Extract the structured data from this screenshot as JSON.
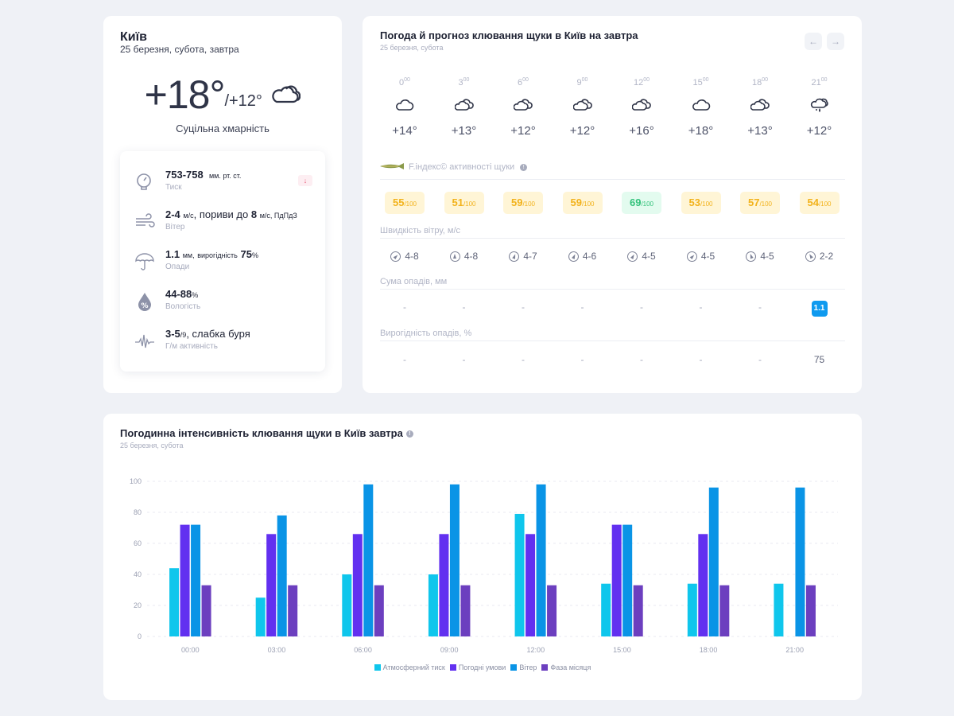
{
  "summary": {
    "city": "Київ",
    "date": "25 березня, субота, завтра",
    "temp_max": "+18°",
    "temp_min": "/+12°",
    "weather_icon": "cloudy-icon",
    "condition": "Суцільна хмарність",
    "details": [
      {
        "icon": "pressure-gauge-icon",
        "value": "753-758",
        "unit": "мм. рт. ст.",
        "label": "Тиск",
        "trend": "down"
      },
      {
        "icon": "wind-icon",
        "value": "2-4",
        "unit": "м/с",
        "extra": ", пориви до",
        "gust": "8",
        "gust_unit": "м/с, ПдПдЗ",
        "label": "Вітер"
      },
      {
        "icon": "umbrella-icon",
        "value": "1.1",
        "unit": "мм,",
        "extra": "вирогідність",
        "prob": "75",
        "prob_unit": "%",
        "label": "Опади"
      },
      {
        "icon": "humidity-drop-icon",
        "value": "44-88",
        "unit": "%",
        "label": "Вологість"
      },
      {
        "icon": "geomagnetic-pulse-icon",
        "value": "3-5",
        "unit": "/9",
        "extra": ", слабка буря",
        "label": "Г/м активність"
      }
    ]
  },
  "forecast": {
    "title": "Погода й прогноз клювання щуки в Київ на завтра",
    "subtitle": "25 березня, субота",
    "prev_label": "←",
    "next_label": "→",
    "hours": [
      {
        "h": "0",
        "m": "00",
        "icon": "cloud-icon",
        "temp": "+14°",
        "index": "55",
        "index_level": "yellow",
        "wind": "4-8",
        "wind_dir_deg": 45,
        "precip": "-",
        "prob": "-"
      },
      {
        "h": "3",
        "m": "00",
        "icon": "partly-cloudy-icon",
        "temp": "+13°",
        "index": "51",
        "index_level": "yellow",
        "wind": "4-8",
        "wind_dir_deg": 0,
        "precip": "-",
        "prob": "-"
      },
      {
        "h": "6",
        "m": "00",
        "icon": "partly-cloudy-icon",
        "temp": "+12°",
        "index": "59",
        "index_level": "yellow",
        "wind": "4-7",
        "wind_dir_deg": 20,
        "precip": "-",
        "prob": "-"
      },
      {
        "h": "9",
        "m": "00",
        "icon": "partly-cloudy-icon",
        "temp": "+12°",
        "index": "59",
        "index_level": "yellow",
        "wind": "4-6",
        "wind_dir_deg": 25,
        "precip": "-",
        "prob": "-"
      },
      {
        "h": "12",
        "m": "00",
        "icon": "partly-cloudy-icon",
        "temp": "+16°",
        "index": "69",
        "index_level": "green",
        "wind": "4-5",
        "wind_dir_deg": 30,
        "precip": "-",
        "prob": "-"
      },
      {
        "h": "15",
        "m": "00",
        "icon": "cloud-icon",
        "temp": "+18°",
        "index": "53",
        "index_level": "yellow",
        "wind": "4-5",
        "wind_dir_deg": 45,
        "precip": "-",
        "prob": "-"
      },
      {
        "h": "18",
        "m": "00",
        "icon": "partly-cloudy-icon",
        "temp": "+13°",
        "index": "57",
        "index_level": "yellow",
        "wind": "4-5",
        "wind_dir_deg": -20,
        "precip": "-",
        "prob": "-"
      },
      {
        "h": "21",
        "m": "00",
        "icon": "rain-cloud-icon",
        "temp": "+12°",
        "index": "54",
        "index_level": "yellow",
        "wind": "2-2",
        "wind_dir_deg": -30,
        "precip": "1.1",
        "prob": "75"
      }
    ],
    "index_label": "F.індекс© активності щуки",
    "index_suffix": "/100",
    "wind_label": "Швидкість вітру, м/с",
    "precip_label": "Сума опадів, мм",
    "prob_label": "Вирогідність опадів, %",
    "colors": {
      "index_yellow": "#f2b21b",
      "index_green": "#33c27b",
      "precip_badge": "#0f9aef"
    }
  },
  "hourly_chart": {
    "title": "Погодинна інтенсивність клювання щуки в Київ завтра",
    "subtitle": "25 березня, субота"
  },
  "chart_data": {
    "type": "bar",
    "title": "Погодинна інтенсивність клювання щуки в Київ завтра",
    "xlabel": "",
    "ylabel": "",
    "ylim": [
      0,
      100
    ],
    "yticks": [
      0,
      20,
      40,
      60,
      80,
      100
    ],
    "grid": true,
    "legend_position": "bottom",
    "categories": [
      "00:00",
      "03:00",
      "06:00",
      "09:00",
      "12:00",
      "15:00",
      "18:00",
      "21:00"
    ],
    "series": [
      {
        "name": "Атмосферний тиск",
        "color": "#0fc6ec",
        "values": [
          44,
          25,
          40,
          40,
          79,
          34,
          34,
          34
        ]
      },
      {
        "name": "Погодні умови",
        "color": "#6230f0",
        "values": [
          72,
          66,
          66,
          66,
          66,
          72,
          66,
          0
        ]
      },
      {
        "name": "Вітер",
        "color": "#0a94e6",
        "values": [
          72,
          78,
          98,
          98,
          98,
          72,
          96,
          96
        ]
      },
      {
        "name": "Фаза місяця",
        "color": "#6c3fbf",
        "values": [
          33,
          33,
          33,
          33,
          33,
          33,
          33,
          33
        ]
      }
    ]
  }
}
